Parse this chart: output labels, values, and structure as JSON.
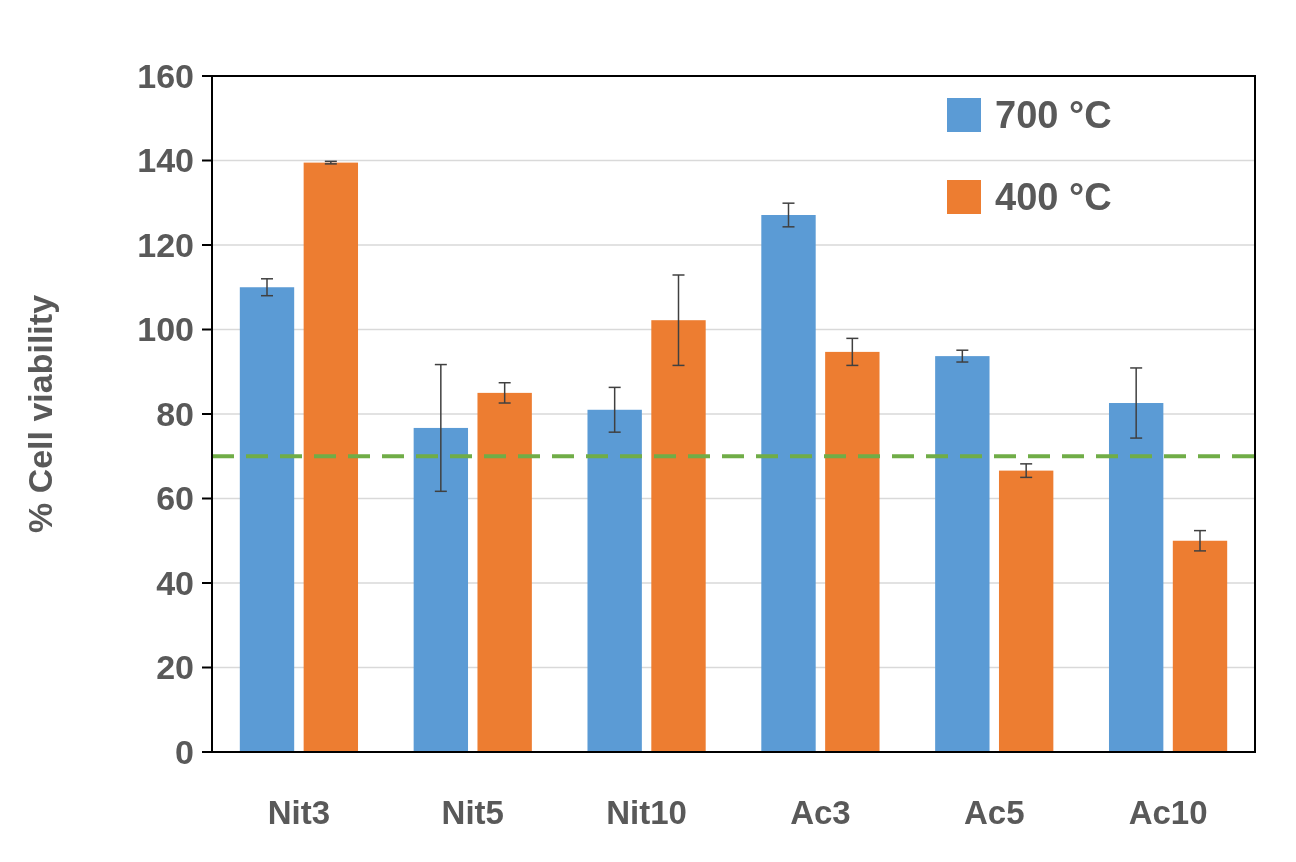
{
  "chart_data": {
    "type": "bar",
    "ylabel": "% Cell viability",
    "categories": [
      "Nit3",
      "Nit5",
      "Nit10",
      "Ac3",
      "Ac5",
      "Ac10"
    ],
    "series": [
      {
        "name": "700 °C",
        "color": "#5b9bd5",
        "values": [
          110,
          76.7,
          81,
          127.1,
          93.7,
          82.6
        ],
        "errors": [
          2,
          15,
          5.3,
          2.8,
          1.4,
          8.3
        ]
      },
      {
        "name": "400 °C",
        "color": "#ed7d31",
        "values": [
          139.5,
          85,
          102.2,
          94.7,
          66.6,
          50
        ],
        "errors": [
          0.3,
          2.4,
          10.7,
          3.2,
          1.6,
          2.4
        ]
      }
    ],
    "ylim": [
      0,
      160
    ],
    "yticks": [
      0,
      20,
      40,
      60,
      80,
      100,
      120,
      140,
      160
    ],
    "grid": "y",
    "legend": "top right",
    "ref_lines": [
      {
        "axis": "y",
        "value": 70,
        "color": "#70ad47",
        "line_style": "dashed"
      }
    ]
  }
}
